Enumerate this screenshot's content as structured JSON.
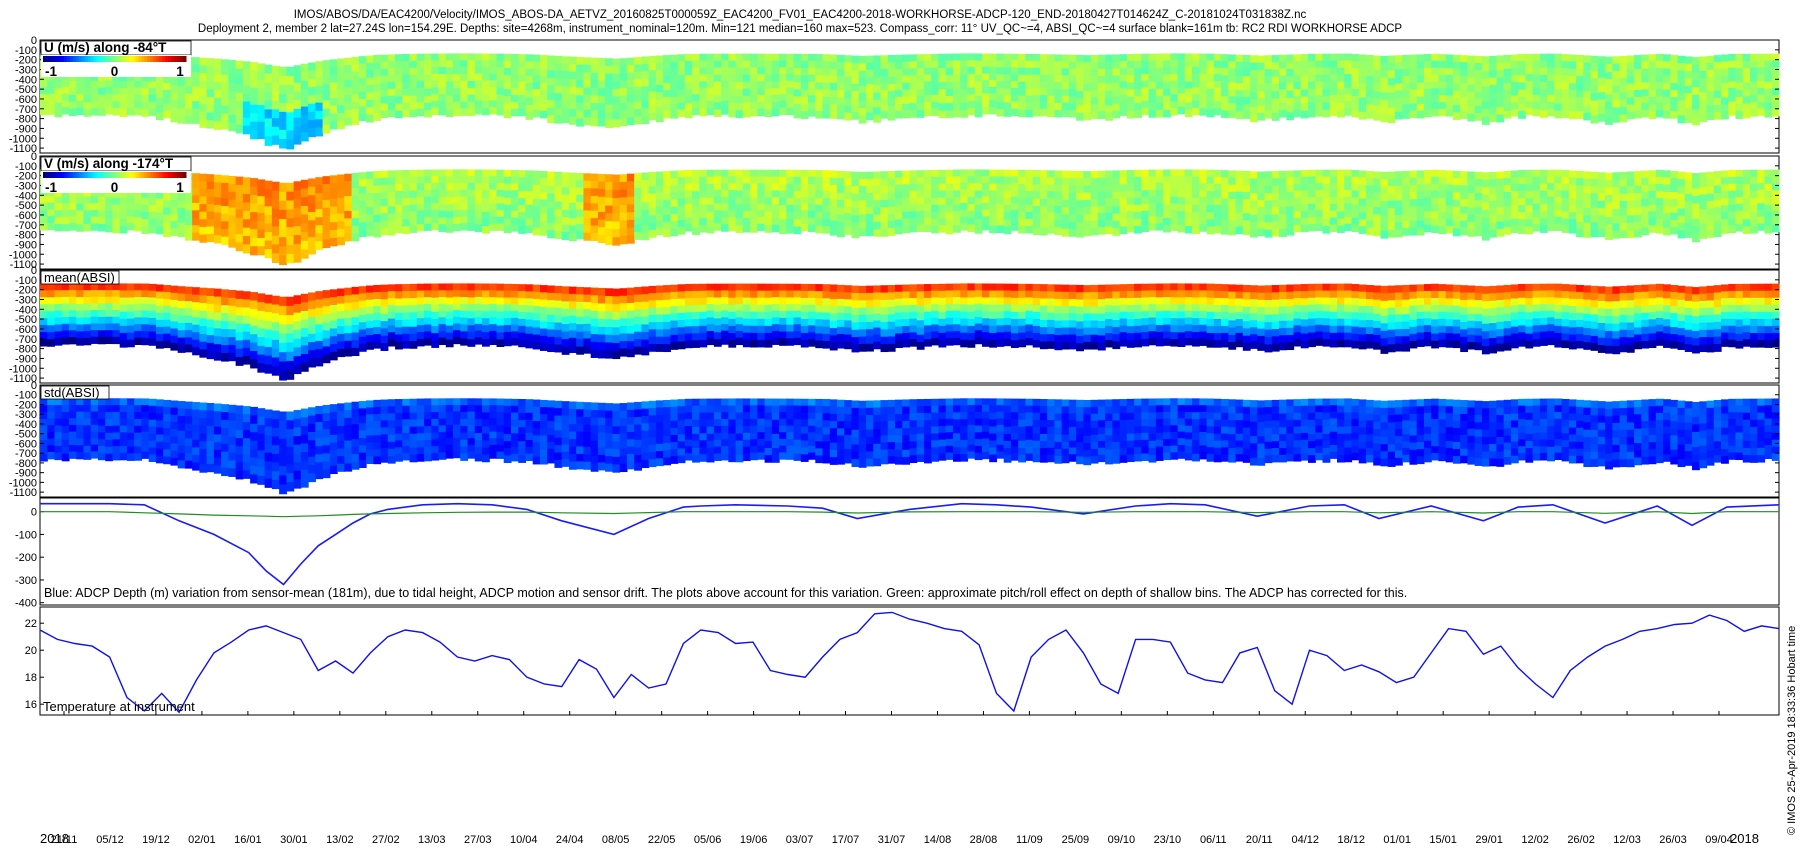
{
  "header": {
    "line1": "IMOS/ABOS/DA/EAC4200/Velocity/IMOS_ABOS-DA_AETVZ_20160825T000059Z_EAC4200_FV01_EAC4200-2018-WORKHORSE-ADCP-120_END-20180427T014624Z_C-20181024T031838Z.nc",
    "line2": "Deployment 2, member 2 lat=27.24S lon=154.29E. Depths: site=4268m, instrument_nominal=120m. Min=121 median=160 max=523. Compass_corr: 11° UV_QC~=4, ABSI_QC~=4 surface blank=161m tb: RC2 RDI WORKHORSE ADCP"
  },
  "side_label": "© IMOS 25-Apr-2019 18:33:36 Hobart time",
  "colors": {
    "depth_line": "#1a1aff",
    "pitch_line": "#228b22",
    "temp_line": "#1010f0"
  },
  "chart_data": [
    {
      "type": "heatmap",
      "title": "U (m/s) along -84°T",
      "colorbar_ticks": [
        "-1",
        "0",
        "1"
      ],
      "clim": [
        -1,
        1
      ],
      "y_ticks": [
        "0",
        "-100",
        "-200",
        "-300",
        "-400",
        "-500",
        "-600",
        "-700",
        "-800",
        "-900",
        "-1000",
        "-1100"
      ],
      "ylim": [
        -1150,
        0
      ],
      "colormap": "jet"
    },
    {
      "type": "heatmap",
      "title": "V (m/s) along -174°T",
      "colorbar_ticks": [
        "-1",
        "0",
        "1"
      ],
      "clim": [
        -1,
        1
      ],
      "y_ticks": [
        "0",
        "-100",
        "-200",
        "-300",
        "-400",
        "-500",
        "-600",
        "-700",
        "-800",
        "-900",
        "-1000",
        "-1100"
      ],
      "ylim": [
        -1150,
        0
      ],
      "colormap": "jet"
    },
    {
      "type": "heatmap",
      "title": "mean(ABSI)",
      "y_ticks": [
        "0",
        "-100",
        "-200",
        "-300",
        "-400",
        "-500",
        "-600",
        "-700",
        "-800",
        "-900",
        "-1000",
        "-1100"
      ],
      "ylim": [
        -1150,
        0
      ],
      "colormap": "jet"
    },
    {
      "type": "heatmap",
      "title": "std(ABSI)",
      "y_ticks": [
        "0",
        "-100",
        "-200",
        "-300",
        "-400",
        "-500",
        "-600",
        "-700",
        "-800",
        "-900",
        "-1000",
        "-1100"
      ],
      "ylim": [
        -1150,
        0
      ],
      "colormap": "jet"
    },
    {
      "type": "line",
      "annotation": "Blue: ADCP Depth (m) variation from sensor-mean (181m), due to tidal height, ADCP motion and sensor drift. The plots above account for this variation. Green: approximate pitch/roll effect on depth of shallow bins. The ADCP has corrected for this.",
      "y_ticks": [
        "0",
        "-100",
        "-200",
        "-300",
        "-400"
      ],
      "ylim": [
        -410,
        60
      ],
      "x": [
        0,
        4,
        6,
        8,
        10,
        12,
        13,
        14,
        15,
        16,
        17,
        18,
        19,
        20,
        22,
        24,
        26,
        28,
        30,
        33,
        35,
        37,
        38,
        40,
        43,
        45,
        47,
        50,
        53,
        55,
        57,
        60,
        63,
        65,
        67,
        70,
        73,
        75,
        77,
        80,
        83,
        85,
        87,
        90,
        93,
        95,
        97,
        100
      ],
      "series": [
        {
          "values": [
            35,
            35,
            30,
            -40,
            -100,
            -180,
            -260,
            -320,
            -230,
            -150,
            -100,
            -50,
            -10,
            10,
            30,
            35,
            30,
            10,
            -40,
            -100,
            -30,
            20,
            25,
            30,
            25,
            15,
            -30,
            10,
            35,
            30,
            20,
            -10,
            25,
            35,
            30,
            -20,
            25,
            30,
            -30,
            25,
            -40,
            20,
            30,
            -50,
            25,
            -60,
            20,
            30
          ]
        },
        {
          "values": [
            0,
            0,
            -5,
            -10,
            -15,
            -18,
            -20,
            -22,
            -20,
            -18,
            -15,
            -12,
            -10,
            -8,
            -5,
            -3,
            -2,
            -2,
            -5,
            -8,
            -4,
            0,
            0,
            0,
            0,
            -2,
            -6,
            -1,
            0,
            0,
            0,
            -3,
            0,
            0,
            0,
            -4,
            0,
            0,
            -5,
            0,
            -6,
            0,
            0,
            -7,
            0,
            -8,
            0,
            0
          ]
        }
      ]
    },
    {
      "type": "line",
      "xlabel": "Temperature at instrument",
      "y_ticks": [
        "16",
        "18",
        "20",
        "22"
      ],
      "ylim": [
        15.2,
        23.2
      ],
      "x": [
        0,
        1,
        2,
        3,
        4,
        5,
        6,
        7,
        8,
        9,
        10,
        11,
        12,
        13,
        14,
        15,
        16,
        17,
        18,
        19,
        20,
        21,
        22,
        23,
        24,
        25,
        26,
        27,
        28,
        29,
        30,
        31,
        32,
        33,
        34,
        35,
        36,
        37,
        38,
        39,
        40,
        41,
        42,
        43,
        44,
        45,
        46,
        47,
        48,
        49,
        50,
        51,
        52,
        53,
        54,
        55,
        56,
        57,
        58,
        59,
        60,
        61,
        62,
        63,
        64,
        65,
        66,
        67,
        68,
        69,
        70,
        71,
        72,
        73,
        74,
        75,
        76,
        77,
        78,
        79,
        80,
        81,
        82,
        83,
        84,
        85,
        86,
        87,
        88,
        89,
        90,
        91,
        92,
        93,
        94,
        95,
        96,
        97,
        98,
        99,
        100
      ],
      "series": [
        {
          "values": [
            21.5,
            20.8,
            20.5,
            20.3,
            19.5,
            16.5,
            15.5,
            16.8,
            15.4,
            17.8,
            19.8,
            20.6,
            21.5,
            21.8,
            21.3,
            20.8,
            18.5,
            19.2,
            18.3,
            19.8,
            21.0,
            21.5,
            21.3,
            20.6,
            19.5,
            19.2,
            19.6,
            19.3,
            18.0,
            17.5,
            17.3,
            19.3,
            18.6,
            16.5,
            18.2,
            17.2,
            17.5,
            20.5,
            21.5,
            21.3,
            20.5,
            20.6,
            18.5,
            18.2,
            18.0,
            19.5,
            20.8,
            21.3,
            22.7,
            22.8,
            22.3,
            22.0,
            21.6,
            21.4,
            20.4,
            16.8,
            15.5,
            19.5,
            20.8,
            21.5,
            19.8,
            17.5,
            16.8,
            20.8,
            20.8,
            20.6,
            18.3,
            17.8,
            17.6,
            19.8,
            20.2,
            17.0,
            16.0,
            20.0,
            19.6,
            18.5,
            18.9,
            18.4,
            17.6,
            18.0,
            19.8,
            21.6,
            21.4,
            19.7,
            20.3,
            18.7,
            17.5,
            16.5,
            18.5,
            19.5,
            20.3,
            20.8,
            21.4,
            21.6,
            21.9,
            22.0,
            22.6,
            22.2,
            21.4,
            21.8,
            21.6
          ]
        }
      ]
    }
  ],
  "x_axis": {
    "year_start": "2018",
    "year_end": "2018",
    "ticks": [
      "21/11",
      "05/12",
      "19/12",
      "02/01",
      "16/01",
      "30/01",
      "13/02",
      "27/02",
      "13/03",
      "27/03",
      "10/04",
      "24/04",
      "08/05",
      "22/05",
      "05/06",
      "19/06",
      "03/07",
      "17/07",
      "31/07",
      "14/08",
      "28/08",
      "11/09",
      "25/09",
      "09/10",
      "23/10",
      "06/11",
      "20/11",
      "04/12",
      "18/12",
      "01/01",
      "15/01",
      "29/01",
      "12/02",
      "26/02",
      "12/03",
      "26/03",
      "09/04"
    ]
  }
}
